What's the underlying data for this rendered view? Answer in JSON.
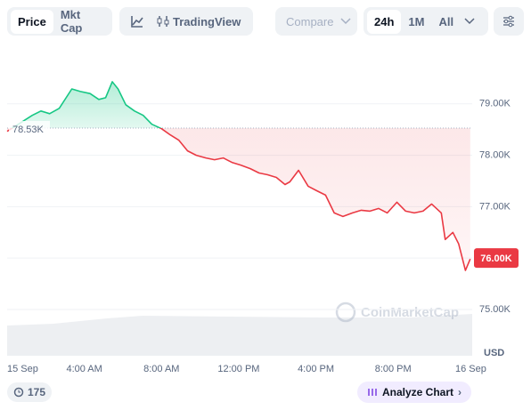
{
  "toolbar": {
    "tabs": [
      "Price",
      "Mkt Cap"
    ],
    "tradingview": "TradingView",
    "compare": "Compare",
    "ranges": [
      "24h",
      "1M",
      "All"
    ]
  },
  "chart_data": {
    "type": "line",
    "x": [
      0,
      1.3,
      1.75,
      2.2,
      2.7,
      3.35,
      3.8,
      4.3,
      4.75,
      5.1,
      5.45,
      5.75,
      6.15,
      6.6,
      7.05,
      7.5,
      8,
      8.45,
      8.9,
      9.35,
      9.8,
      10.3,
      10.75,
      11.2,
      11.65,
      12.1,
      12.6,
      13.05,
      13.5,
      13.95,
      14.4,
      14.65,
      15.1,
      15.6,
      16.05,
      16.5,
      16.95,
      17.4,
      17.9,
      18.35,
      18.8,
      19.25,
      19.7,
      20.2,
      20.65,
      21.1,
      21.55,
      22,
      22.5,
      22.7,
      23.1,
      23.4,
      23.75,
      24
    ],
    "values": [
      78466,
      78776,
      78862,
      78810,
      78914,
      79290,
      79240,
      79200,
      79086,
      79120,
      79430,
      79290,
      78983,
      78862,
      78776,
      78603,
      78517,
      78397,
      78293,
      78086,
      78000,
      77948,
      77914,
      77948,
      77862,
      77810,
      77741,
      77655,
      77621,
      77569,
      77431,
      77483,
      77707,
      77397,
      77310,
      77224,
      76879,
      76810,
      76879,
      76931,
      76914,
      76965,
      76879,
      77086,
      76914,
      76879,
      76914,
      77052,
      76879,
      76362,
      76500,
      76276,
      75759,
      75983
    ],
    "up_color": "#16c784",
    "down_color": "#ea3943",
    "xlim": [
      0,
      24.1
    ],
    "xticks": [
      {
        "value": 0,
        "label": "15 Sep"
      },
      {
        "value": 4,
        "label": "4:00 AM"
      },
      {
        "value": 8,
        "label": "8:00 AM"
      },
      {
        "value": 12,
        "label": "12:00 PM"
      },
      {
        "value": 16,
        "label": "4:00 PM"
      },
      {
        "value": 20,
        "label": "8:00 PM"
      },
      {
        "value": 24,
        "label": "16 Sep"
      }
    ],
    "ylim": [
      74100,
      80000
    ],
    "yticks": [
      {
        "value": 75000,
        "label": "75.00K"
      },
      {
        "value": 76000,
        "label": "76.00K"
      },
      {
        "value": 77000,
        "label": "77.00K"
      },
      {
        "value": 78000,
        "label": "78.00K"
      },
      {
        "value": 79000,
        "label": "79.00K"
      }
    ],
    "grid": true,
    "reference": {
      "value": 78530,
      "label": "78.53K"
    },
    "current_price": {
      "value": 76000,
      "label": "76.00K"
    },
    "y_unit": "USD",
    "watermark": "CoinMarketCap"
  },
  "footer": {
    "count": "175",
    "analyze": "Analyze Chart"
  }
}
